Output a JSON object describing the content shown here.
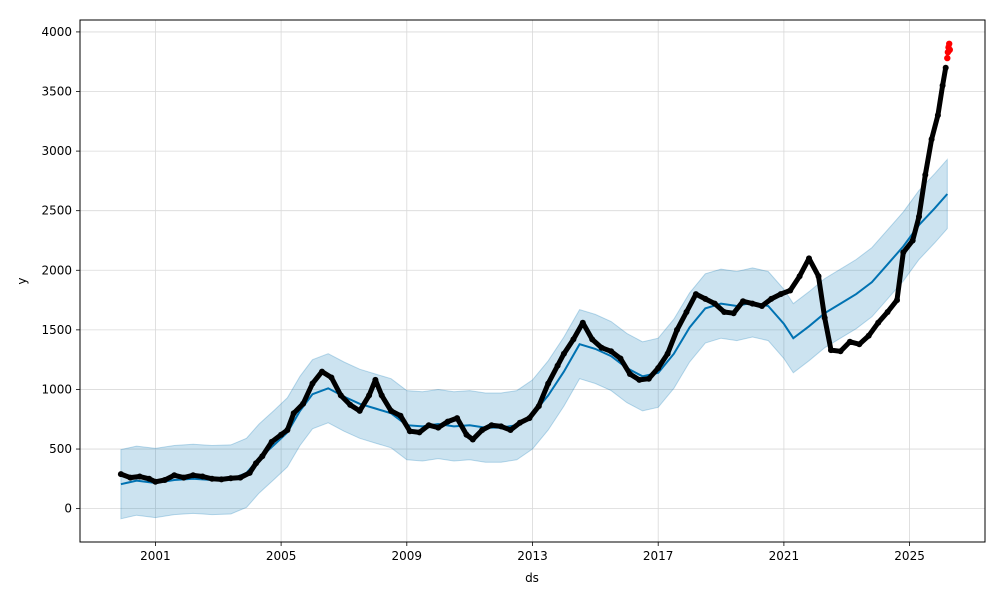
{
  "chart_data": {
    "type": "scatter",
    "title": "",
    "xlabel": "ds",
    "ylabel": "y",
    "x_ticks": [
      2001,
      2005,
      2009,
      2013,
      2017,
      2021,
      2025
    ],
    "y_ticks": [
      0,
      500,
      1000,
      1500,
      2000,
      2500,
      3000,
      3500,
      4000
    ],
    "xlim": [
      1998.6,
      2027.4
    ],
    "ylim": [
      -280,
      4100
    ],
    "grid": true,
    "legend": "none",
    "colors": {
      "observed": "#000000",
      "recent": "#ff0000",
      "forecast": "#0072b2",
      "interval": "#0072b2"
    },
    "interval_half_width": 290,
    "series": [
      {
        "role": "forecast",
        "points": [
          [
            1999.9,
            205
          ],
          [
            2000.4,
            235
          ],
          [
            2001.0,
            215
          ],
          [
            2001.6,
            240
          ],
          [
            2002.2,
            250
          ],
          [
            2002.8,
            240
          ],
          [
            2003.4,
            245
          ],
          [
            2003.9,
            300
          ],
          [
            2004.3,
            420
          ],
          [
            2004.8,
            540
          ],
          [
            2005.2,
            640
          ],
          [
            2005.6,
            820
          ],
          [
            2006.0,
            960
          ],
          [
            2006.5,
            1010
          ],
          [
            2007.0,
            940
          ],
          [
            2007.5,
            880
          ],
          [
            2008.0,
            840
          ],
          [
            2008.5,
            800
          ],
          [
            2009.0,
            700
          ],
          [
            2009.5,
            690
          ],
          [
            2010.0,
            710
          ],
          [
            2010.5,
            690
          ],
          [
            2011.0,
            700
          ],
          [
            2011.5,
            680
          ],
          [
            2012.0,
            680
          ],
          [
            2012.5,
            700
          ],
          [
            2013.0,
            790
          ],
          [
            2013.5,
            950
          ],
          [
            2014.0,
            1150
          ],
          [
            2014.5,
            1380
          ],
          [
            2015.0,
            1340
          ],
          [
            2015.5,
            1280
          ],
          [
            2016.0,
            1180
          ],
          [
            2016.5,
            1110
          ],
          [
            2017.0,
            1140
          ],
          [
            2017.5,
            1300
          ],
          [
            2018.0,
            1520
          ],
          [
            2018.5,
            1680
          ],
          [
            2019.0,
            1720
          ],
          [
            2019.5,
            1700
          ],
          [
            2020.0,
            1730
          ],
          [
            2020.5,
            1700
          ],
          [
            2021.0,
            1550
          ],
          [
            2021.3,
            1430
          ],
          [
            2021.8,
            1530
          ],
          [
            2022.3,
            1640
          ],
          [
            2022.8,
            1720
          ],
          [
            2023.3,
            1800
          ],
          [
            2023.8,
            1900
          ],
          [
            2024.3,
            2050
          ],
          [
            2024.8,
            2200
          ],
          [
            2025.3,
            2380
          ],
          [
            2025.8,
            2520
          ],
          [
            2026.2,
            2640
          ]
        ]
      },
      {
        "role": "observed",
        "points": [
          [
            1999.9,
            290
          ],
          [
            2000.2,
            260
          ],
          [
            2000.5,
            270
          ],
          [
            2000.8,
            250
          ],
          [
            2001.0,
            225
          ],
          [
            2001.3,
            240
          ],
          [
            2001.6,
            280
          ],
          [
            2001.9,
            260
          ],
          [
            2002.2,
            280
          ],
          [
            2002.5,
            270
          ],
          [
            2002.8,
            250
          ],
          [
            2003.1,
            245
          ],
          [
            2003.4,
            255
          ],
          [
            2003.7,
            260
          ],
          [
            2004.0,
            300
          ],
          [
            2004.2,
            380
          ],
          [
            2004.4,
            440
          ],
          [
            2004.7,
            560
          ],
          [
            2005.0,
            620
          ],
          [
            2005.2,
            660
          ],
          [
            2005.4,
            800
          ],
          [
            2005.7,
            880
          ],
          [
            2006.0,
            1050
          ],
          [
            2006.3,
            1150
          ],
          [
            2006.6,
            1100
          ],
          [
            2006.9,
            950
          ],
          [
            2007.2,
            870
          ],
          [
            2007.5,
            820
          ],
          [
            2007.8,
            950
          ],
          [
            2008.0,
            1080
          ],
          [
            2008.2,
            950
          ],
          [
            2008.5,
            820
          ],
          [
            2008.8,
            780
          ],
          [
            2009.1,
            650
          ],
          [
            2009.4,
            640
          ],
          [
            2009.7,
            700
          ],
          [
            2010.0,
            680
          ],
          [
            2010.3,
            730
          ],
          [
            2010.6,
            760
          ],
          [
            2010.9,
            620
          ],
          [
            2011.1,
            580
          ],
          [
            2011.4,
            660
          ],
          [
            2011.7,
            700
          ],
          [
            2012.0,
            690
          ],
          [
            2012.3,
            660
          ],
          [
            2012.6,
            720
          ],
          [
            2012.9,
            760
          ],
          [
            2013.2,
            860
          ],
          [
            2013.5,
            1050
          ],
          [
            2013.8,
            1200
          ],
          [
            2014.0,
            1300
          ],
          [
            2014.3,
            1420
          ],
          [
            2014.6,
            1560
          ],
          [
            2014.9,
            1420
          ],
          [
            2015.2,
            1350
          ],
          [
            2015.5,
            1320
          ],
          [
            2015.8,
            1260
          ],
          [
            2016.1,
            1130
          ],
          [
            2016.4,
            1080
          ],
          [
            2016.7,
            1090
          ],
          [
            2017.0,
            1180
          ],
          [
            2017.3,
            1300
          ],
          [
            2017.6,
            1500
          ],
          [
            2017.9,
            1650
          ],
          [
            2018.2,
            1800
          ],
          [
            2018.5,
            1760
          ],
          [
            2018.8,
            1720
          ],
          [
            2019.1,
            1650
          ],
          [
            2019.4,
            1640
          ],
          [
            2019.7,
            1740
          ],
          [
            2020.0,
            1720
          ],
          [
            2020.3,
            1700
          ],
          [
            2020.6,
            1760
          ],
          [
            2020.9,
            1800
          ],
          [
            2021.2,
            1830
          ],
          [
            2021.5,
            1950
          ],
          [
            2021.8,
            2100
          ],
          [
            2022.1,
            1950
          ],
          [
            2022.3,
            1600
          ],
          [
            2022.5,
            1330
          ],
          [
            2022.8,
            1320
          ],
          [
            2023.1,
            1400
          ],
          [
            2023.4,
            1380
          ],
          [
            2023.7,
            1450
          ],
          [
            2024.0,
            1560
          ],
          [
            2024.3,
            1650
          ],
          [
            2024.6,
            1750
          ],
          [
            2024.8,
            2150
          ],
          [
            2025.1,
            2250
          ],
          [
            2025.3,
            2450
          ],
          [
            2025.5,
            2800
          ],
          [
            2025.7,
            3100
          ],
          [
            2025.9,
            3300
          ],
          [
            2026.05,
            3550
          ],
          [
            2026.15,
            3700
          ]
        ]
      },
      {
        "role": "recent",
        "points": [
          [
            2026.2,
            3780
          ],
          [
            2026.22,
            3830
          ],
          [
            2026.24,
            3870
          ],
          [
            2026.26,
            3900
          ],
          [
            2026.28,
            3850
          ]
        ]
      }
    ]
  }
}
